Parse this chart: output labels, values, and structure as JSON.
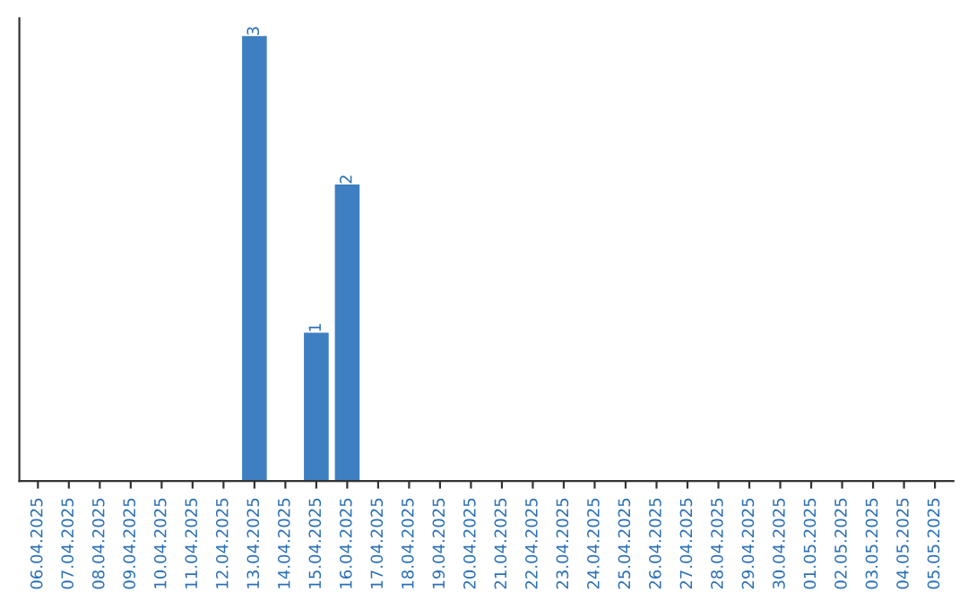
{
  "chart_data": {
    "type": "bar",
    "categories": [
      "06.04.2025",
      "07.04.2025",
      "08.04.2025",
      "09.04.2025",
      "10.04.2025",
      "11.04.2025",
      "12.04.2025",
      "13.04.2025",
      "14.04.2025",
      "15.04.2025",
      "16.04.2025",
      "17.04.2025",
      "18.04.2025",
      "19.04.2025",
      "20.04.2025",
      "21.04.2025",
      "22.04.2025",
      "23.04.2025",
      "24.04.2025",
      "25.04.2025",
      "26.04.2025",
      "27.04.2025",
      "28.04.2025",
      "29.04.2025",
      "30.04.2025",
      "01.05.2025",
      "02.05.2025",
      "03.05.2025",
      "04.05.2025",
      "05.05.2025"
    ],
    "values": [
      0,
      0,
      0,
      0,
      0,
      0,
      0,
      3,
      0,
      1,
      2,
      0,
      0,
      0,
      0,
      0,
      0,
      0,
      0,
      0,
      0,
      0,
      0,
      0,
      0,
      0,
      0,
      0,
      0,
      0
    ],
    "value_labels": [
      null,
      null,
      null,
      null,
      null,
      null,
      null,
      "3",
      null,
      "1",
      "2",
      null,
      null,
      null,
      null,
      null,
      null,
      null,
      null,
      null,
      null,
      null,
      null,
      null,
      null,
      null,
      null,
      null,
      null,
      null
    ],
    "color": "#3d7fc1",
    "tick_labels": "x",
    "grid": false,
    "legend": false
  }
}
